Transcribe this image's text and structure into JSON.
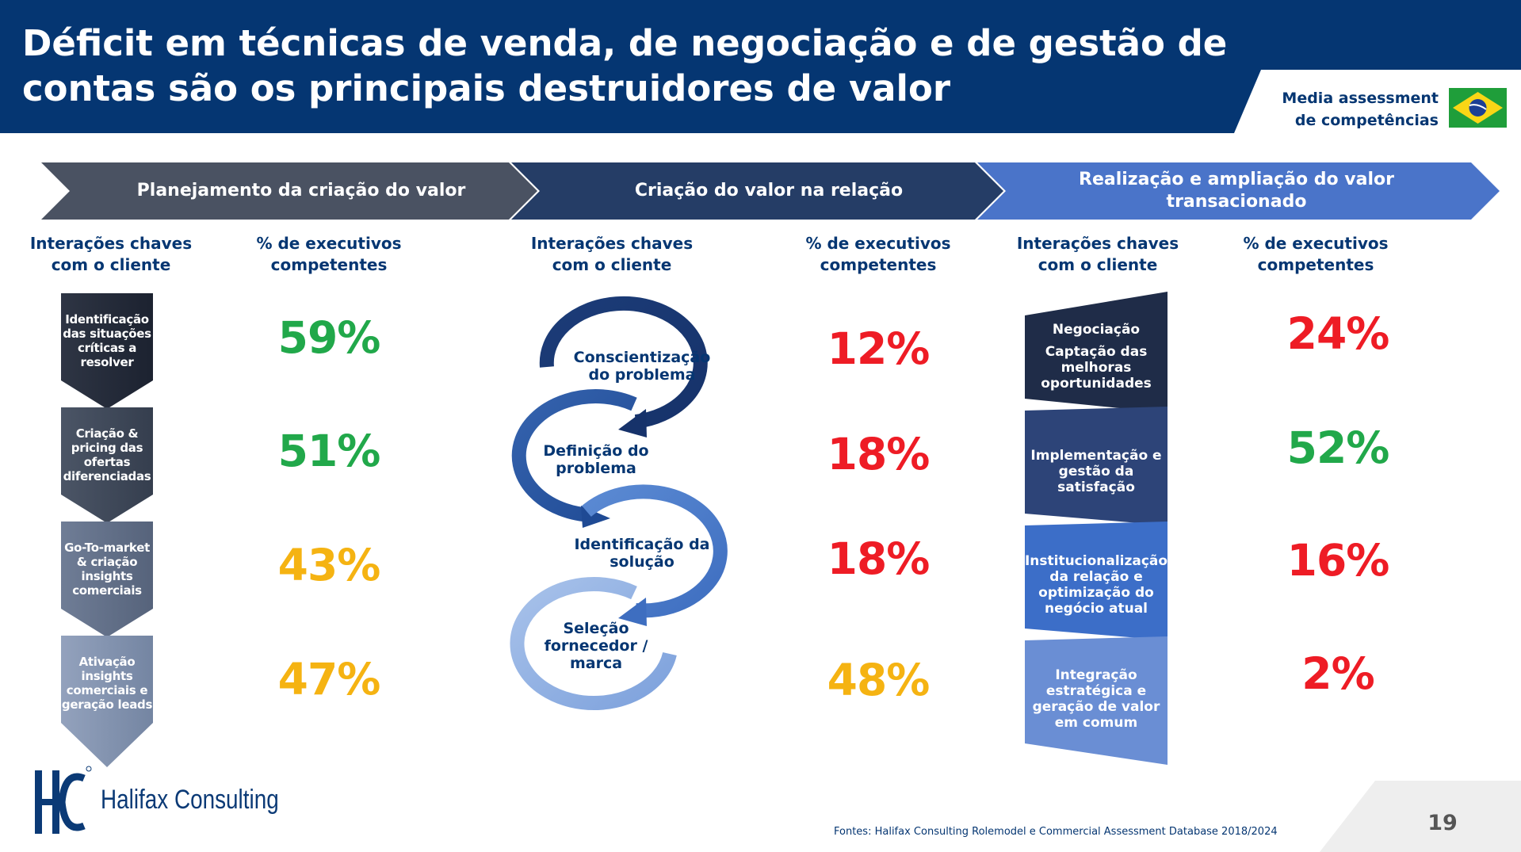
{
  "title": "Déficit em técnicas de venda, de negociação e de gestão de contas são os principais destruidores de valor",
  "badge": {
    "text_line1": "Media assessment",
    "text_line2": "de competências",
    "flag": "brazil-flag"
  },
  "phases": [
    {
      "label": "Planejamento da criação do valor",
      "color": "#4a5262"
    },
    {
      "label": "Criação do valor na relação",
      "color": "#253d66"
    },
    {
      "label": "Realização e ampliação do valor transacionado",
      "color": "#4a74c9"
    }
  ],
  "column_headers": {
    "interactions": "Interações chaves com o cliente",
    "competent": "% de executivos competentes"
  },
  "section1": {
    "items": [
      {
        "label": "Identificação das situações críticas a resolver",
        "pct": "59%",
        "status": "green"
      },
      {
        "label": "Criação & pricing das ofertas diferenciadas",
        "pct": "51%",
        "status": "green"
      },
      {
        "label": "Go-To-market & criação insights comerciais",
        "pct": "43%",
        "status": "amber"
      },
      {
        "label": "Ativação insights comerciais e geração leads",
        "pct": "47%",
        "status": "amber"
      }
    ]
  },
  "section2": {
    "items": [
      {
        "label": "Conscientização do problema",
        "pct": "12%",
        "status": "red"
      },
      {
        "label": "Definição do problema",
        "pct": "18%",
        "status": "red"
      },
      {
        "label": "Identificação da solução",
        "pct": "18%",
        "status": "red"
      },
      {
        "label": "Seleção fornecedor / marca",
        "pct": "48%",
        "status": "amber"
      }
    ]
  },
  "section3": {
    "items": [
      {
        "label": "Negociação",
        "sublabel": "Captação das melhoras oportunidades",
        "pct": "24%",
        "status": "red"
      },
      {
        "label": "Implementação e gestão da satisfação",
        "pct": "52%",
        "status": "green"
      },
      {
        "label": "Institucionalização da relação e optimização do negócio atual",
        "pct": "16%",
        "status": "red"
      },
      {
        "label": "Integração estratégica e geração de valor em comum",
        "pct": "2%",
        "status": "red"
      }
    ]
  },
  "colors": {
    "green": "#21a84a",
    "amber": "#f5b312",
    "red": "#ee1c25",
    "navy": "#053672"
  },
  "logo": {
    "mark": "HC",
    "text": "Halifax Consulting"
  },
  "sources": "Fontes: Halifax Consulting Rolemodel e Commercial Assessment Database 2018/2024",
  "page_number": "19"
}
